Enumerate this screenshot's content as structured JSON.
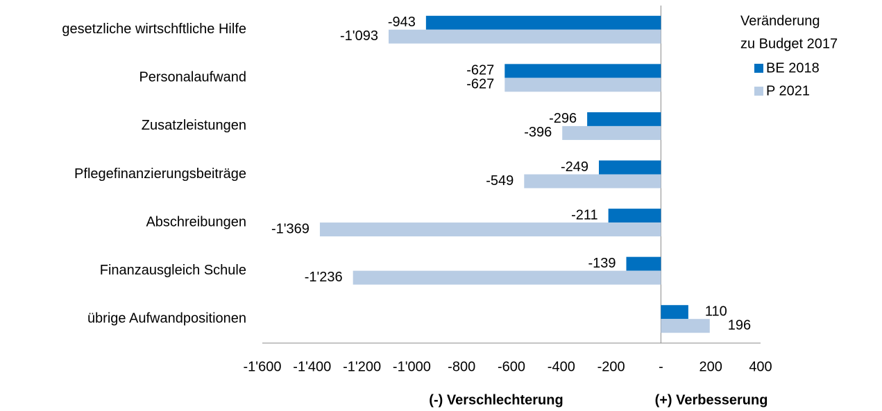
{
  "chart_data": {
    "type": "hbar",
    "categories": [
      "gesetzliche wirtschftliche Hilfe",
      "Personalaufwand",
      "Zusatzleistungen",
      "Pflegefinanzierungsbeiträge",
      "Abschreibungen",
      "Finanzausgleich Schule",
      "übrige Aufwandpositionen"
    ],
    "series": [
      {
        "name": "BE 2018",
        "color": "#0070c0",
        "values": [
          -943,
          -627,
          -296,
          -249,
          -211,
          -139,
          110
        ],
        "value_labels": [
          "-943",
          "-627",
          "-296",
          "-249",
          "-211",
          "-139",
          "110"
        ]
      },
      {
        "name": "P 2021",
        "color": "#b8cce4",
        "values": [
          -1093,
          -627,
          -396,
          -549,
          -1369,
          -1236,
          196
        ],
        "value_labels": [
          "-1'093",
          "-627",
          "-396",
          "-549",
          "-1'369",
          "-1'236",
          "196"
        ]
      }
    ],
    "xlim": [
      -1600,
      400
    ],
    "xticks": [
      {
        "value": -1600,
        "label": "-1'600"
      },
      {
        "value": -1400,
        "label": "-1'400"
      },
      {
        "value": -1200,
        "label": "-1'200"
      },
      {
        "value": -1000,
        "label": "-1'000"
      },
      -800,
      -600,
      -400,
      -200,
      {
        "value": 0,
        "label": "-"
      },
      200,
      400
    ],
    "legend_title": [
      "Veränderung",
      "zu Budget 2017"
    ],
    "legend_position": "right",
    "annotations": [
      "(-) Verschlechterung",
      "(+) Verbesserung"
    ]
  }
}
